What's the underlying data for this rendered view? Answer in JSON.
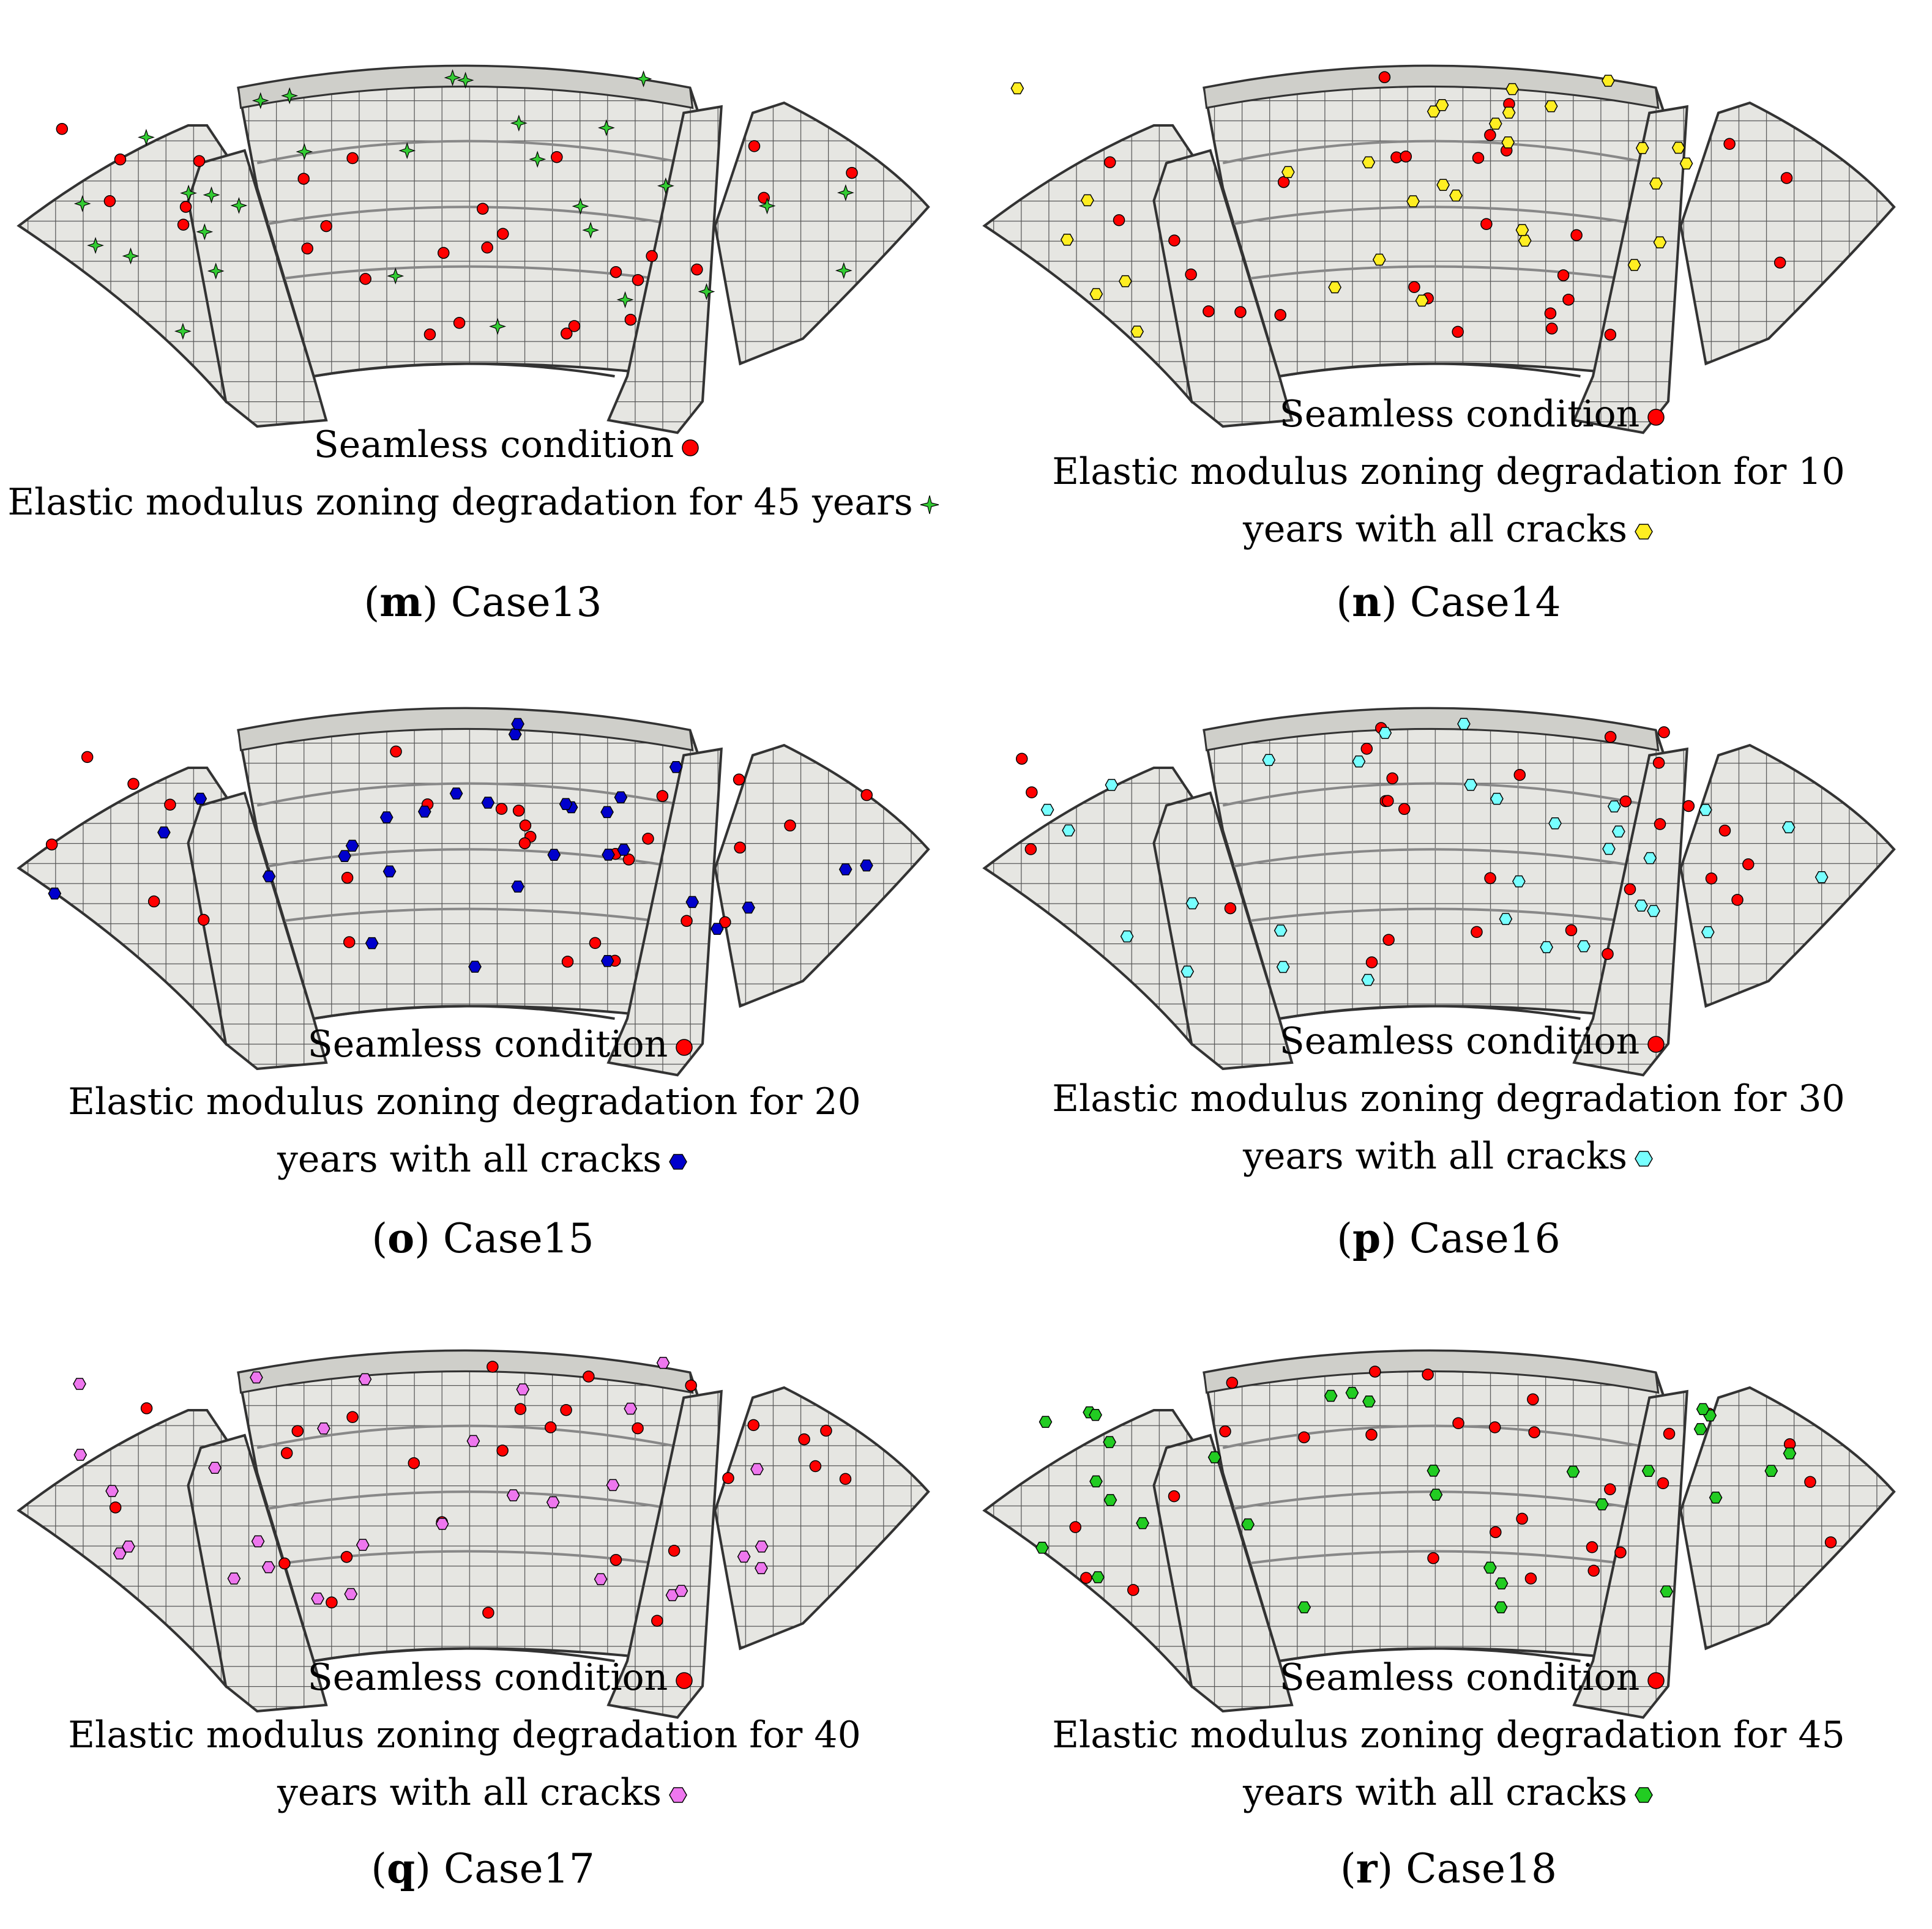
{
  "colors": {
    "seamless": "#ff0000",
    "case13": "#33cc33",
    "case14": "#ffee22",
    "case15": "#0000cc",
    "case16": "#77ffff",
    "case17": "#ee77ee",
    "case18": "#22cc22",
    "mesh_fill": "#e6e6e2",
    "mesh_line": "#555555"
  },
  "panels": [
    {
      "letter": "m",
      "case": "Case13",
      "seamless_label": "Seamless condition",
      "lines": [
        "Elastic modulus zoning degradation for 45 years"
      ],
      "marker": "star",
      "color_key": "case13",
      "icon": "four-point-star-icon"
    },
    {
      "letter": "n",
      "case": "Case14",
      "seamless_label": "Seamless condition",
      "lines": [
        "Elastic modulus zoning degradation for 10",
        "years with all cracks"
      ],
      "marker": "hex",
      "color_key": "case14",
      "icon": "hexagon-icon"
    },
    {
      "letter": "o",
      "case": "Case15",
      "seamless_label": "Seamless condition",
      "lines": [
        "Elastic modulus zoning degradation for 20",
        "years with all cracks"
      ],
      "marker": "hex",
      "color_key": "case15",
      "icon": "hexagon-icon"
    },
    {
      "letter": "p",
      "case": "Case16",
      "seamless_label": "Seamless condition",
      "lines": [
        "Elastic modulus zoning degradation for 30",
        "years with all cracks"
      ],
      "marker": "hex",
      "color_key": "case16",
      "icon": "hexagon-icon"
    },
    {
      "letter": "q",
      "case": "Case17",
      "seamless_label": "Seamless condition",
      "lines": [
        "Elastic modulus zoning degradation for 40",
        "years with all cracks"
      ],
      "marker": "hex",
      "color_key": "case17",
      "icon": "hexagon-icon"
    },
    {
      "letter": "r",
      "case": "Case18",
      "seamless_label": "Seamless condition",
      "lines": [
        "Elastic modulus zoning degradation for 45",
        "years with all cracks"
      ],
      "marker": "hex",
      "color_key": "case18",
      "icon": "hexagon-icon"
    }
  ]
}
